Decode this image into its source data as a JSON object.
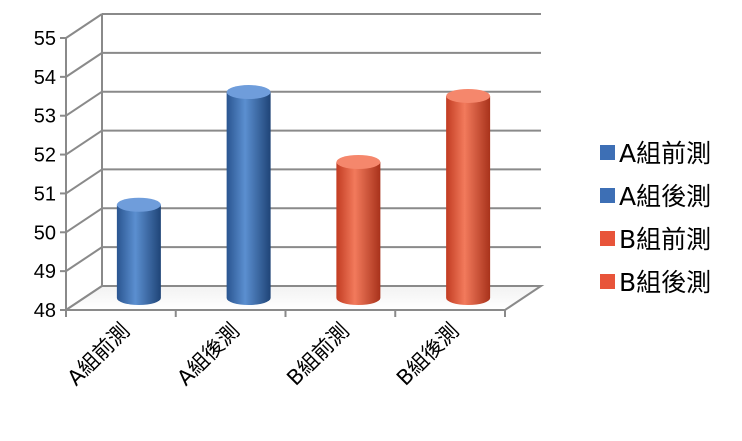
{
  "chart_data": {
    "type": "bar",
    "style": "3d-cylinder",
    "categories": [
      "A組前測",
      "A組後測",
      "B組前測",
      "B組後測"
    ],
    "values": [
      50.4,
      53.3,
      51.5,
      53.2
    ],
    "colors": [
      "#3d6fb5",
      "#3d6fb5",
      "#e8543a",
      "#e8543a"
    ],
    "ylim": [
      48,
      55
    ],
    "yticks": [
      48,
      49,
      50,
      51,
      52,
      53,
      54,
      55
    ],
    "title": "",
    "xlabel": "",
    "ylabel": "",
    "grid": true,
    "legend_position": "right",
    "legend": [
      {
        "label": "A組前測",
        "color": "#3d6fb5"
      },
      {
        "label": "A組後測",
        "color": "#3d6fb5"
      },
      {
        "label": "B組前測",
        "color": "#e8543a"
      },
      {
        "label": "B組後測",
        "color": "#e8543a"
      }
    ]
  }
}
